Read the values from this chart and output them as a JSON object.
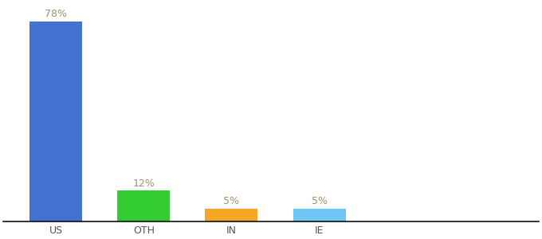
{
  "categories": [
    "US",
    "OTH",
    "IN",
    "IE"
  ],
  "values": [
    78,
    12,
    5,
    5
  ],
  "labels": [
    "78%",
    "12%",
    "5%",
    "5%"
  ],
  "bar_colors": [
    "#4472d3",
    "#33cc33",
    "#f5a623",
    "#6ec6f5"
  ],
  "background_color": "#ffffff",
  "ylim": [
    0,
    85
  ],
  "bar_width": 0.6,
  "label_fontsize": 9,
  "tick_fontsize": 9,
  "label_color": "#a09070",
  "x_positions": [
    0,
    1,
    2,
    3
  ],
  "xlim": [
    -0.6,
    5.5
  ]
}
